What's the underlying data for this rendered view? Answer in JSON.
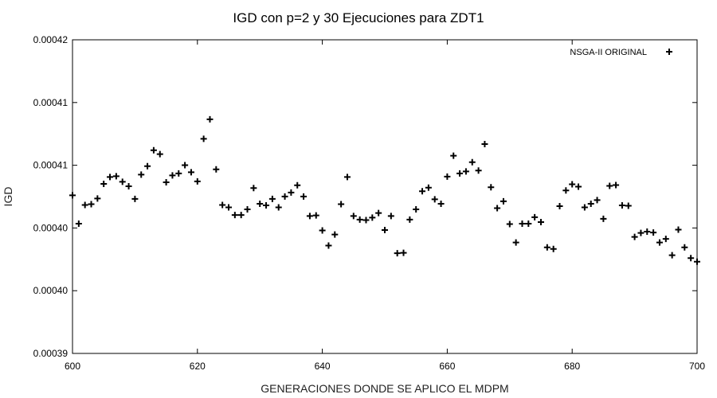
{
  "chart_data": {
    "type": "scatter",
    "title": "IGD con p=2 y 30 Ejecuciones para ZDT1",
    "xlabel": "GENERACIONES DONDE SE APLICO EL MDPM",
    "ylabel": "IGD",
    "xlim": [
      600,
      700
    ],
    "ylim": [
      0.000395,
      0.00042
    ],
    "x_ticks": [
      600,
      620,
      640,
      660,
      680,
      700
    ],
    "y_ticks": [
      0.000395,
      0.0004,
      0.000405,
      0.00041,
      0.000415,
      0.00042
    ],
    "y_tick_labels": [
      "0.00039",
      "0.00040",
      "0.00040",
      "0.00041",
      "0.00041",
      "0.00042"
    ],
    "grid": false,
    "legend_position": "top-right",
    "marker": "+",
    "series": [
      {
        "name": "NSGA-II ORIGINAL",
        "x": [
          600,
          601,
          602,
          603,
          604,
          605,
          606,
          607,
          608,
          609,
          610,
          611,
          612,
          613,
          614,
          615,
          616,
          617,
          618,
          619,
          620,
          621,
          622,
          623,
          624,
          625,
          626,
          627,
          628,
          629,
          630,
          631,
          632,
          633,
          634,
          635,
          636,
          637,
          638,
          639,
          640,
          641,
          642,
          643,
          644,
          645,
          646,
          647,
          648,
          649,
          650,
          651,
          652,
          653,
          654,
          655,
          656,
          657,
          658,
          659,
          660,
          661,
          662,
          663,
          664,
          665,
          666,
          667,
          668,
          669,
          670,
          671,
          672,
          673,
          674,
          675,
          676,
          677,
          678,
          679,
          680,
          681,
          682,
          683,
          684,
          685,
          686,
          687,
          688,
          689,
          690,
          691,
          692,
          693,
          694,
          695,
          696,
          697,
          698,
          699,
          700
        ],
        "y": [
          0.000407606,
          0.000405344,
          0.000406835,
          0.000406899,
          0.000407348,
          0.000408518,
          0.000409062,
          0.000409126,
          0.000408678,
          0.000408325,
          0.000407316,
          0.000409254,
          0.000409927,
          0.000411193,
          0.000410889,
          0.000408646,
          0.00040919,
          0.00040935,
          0.000410007,
          0.000409446,
          0.00040871,
          0.000412106,
          0.00041366,
          0.00040967,
          0.000406835,
          0.000406643,
          0.000406034,
          0.000406034,
          0.000406483,
          0.000408181,
          0.000406932,
          0.000406803,
          0.000407316,
          0.000406643,
          0.000407508,
          0.000407829,
          0.000408406,
          0.000407508,
          0.000405953,
          0.000406002,
          0.000404801,
          0.0004036,
          0.00040448,
          0.000406899,
          0.000409062,
          0.000405953,
          0.000405665,
          0.000405632,
          0.000405825,
          0.000406194,
          0.000404833,
          0.000405953,
          0.000402985,
          0.000403017,
          0.000405665,
          0.000406483,
          0.000407925,
          0.000408214,
          0.000407284,
          0.000406932,
          0.000409094,
          0.00041076,
          0.00040935,
          0.00040951,
          0.000410247,
          0.000409575,
          0.00041169,
          0.000408246,
          0.000406579,
          0.000407124,
          0.000405312,
          0.00040384,
          0.000405344,
          0.000405344,
          0.000405857,
          0.000405473,
          0.000403456,
          0.000403328,
          0.000406739,
          0.000407989,
          0.000408486,
          0.000408294,
          0.000406643,
          0.000406932,
          0.00040722,
          0.000405729,
          0.000408358,
          0.000408422,
          0.000406803,
          0.000406771,
          0.000404288,
          0.000404608,
          0.000404705,
          0.00040464,
          0.00040384,
          0.000404128,
          0.000402825,
          0.000404865,
          0.000403456,
          0.000402601,
          0.000402312
        ]
      }
    ]
  }
}
